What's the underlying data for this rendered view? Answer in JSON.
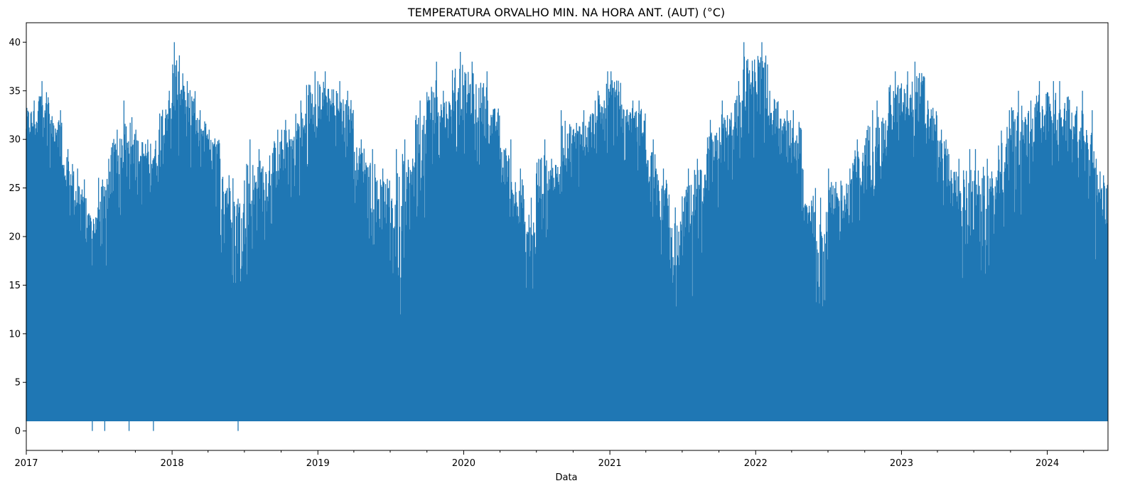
{
  "chart_data": {
    "type": "line",
    "title": "TEMPERATURA ORVALHO MIN. NA HORA ANT. (AUT) (°C)",
    "xlabel": "Data",
    "ylabel": "",
    "x_ticks": [
      "2017",
      "2018",
      "2019",
      "2020",
      "2021",
      "2022",
      "2023",
      "2024"
    ],
    "y_ticks": [
      "0",
      "5",
      "10",
      "15",
      "20",
      "25",
      "30",
      "35",
      "40"
    ],
    "xlim": [
      "2017-01-01",
      "2024-06-01"
    ],
    "ylim": [
      -2,
      42
    ],
    "grid": false,
    "legend": "none",
    "color": "#1f77b4",
    "series": [
      {
        "x": [
          "2017-01",
          "2017-02",
          "2017-03",
          "2017-04",
          "2017-05",
          "2017-06",
          "2017-07",
          "2017-08",
          "2017-09",
          "2017-10",
          "2017-11",
          "2017-12",
          "2018-01",
          "2018-02",
          "2018-03",
          "2018-04",
          "2018-05",
          "2018-06",
          "2018-07",
          "2018-08",
          "2018-09",
          "2018-10",
          "2018-11",
          "2018-12",
          "2019-01",
          "2019-02",
          "2019-03",
          "2019-04",
          "2019-05",
          "2019-06",
          "2019-07",
          "2019-08",
          "2019-09",
          "2019-10",
          "2019-11",
          "2019-12",
          "2020-01",
          "2020-02",
          "2020-03",
          "2020-04",
          "2020-05",
          "2020-06",
          "2020-07",
          "2020-08",
          "2020-09",
          "2020-10",
          "2020-11",
          "2020-12",
          "2021-01",
          "2021-02",
          "2021-03",
          "2021-04",
          "2021-05",
          "2021-06",
          "2021-07",
          "2021-08",
          "2021-09",
          "2021-10",
          "2021-11",
          "2021-12",
          "2022-01",
          "2022-02",
          "2022-03",
          "2022-04",
          "2022-05",
          "2022-06",
          "2022-07",
          "2022-08",
          "2022-09",
          "2022-10",
          "2022-11",
          "2022-12",
          "2023-01",
          "2023-02",
          "2023-03",
          "2023-04",
          "2023-05",
          "2023-06",
          "2023-07",
          "2023-08",
          "2023-09",
          "2023-10",
          "2023-11",
          "2023-12",
          "2024-01",
          "2024-02",
          "2024-03",
          "2024-04",
          "2024-05"
        ],
        "max": [
          34,
          36,
          33,
          29,
          27,
          23,
          28,
          31,
          34,
          31,
          31,
          35,
          40,
          36,
          33,
          31,
          28,
          26,
          30,
          29,
          31,
          32,
          34,
          37,
          37,
          36,
          35,
          30,
          29,
          27,
          29,
          30,
          34,
          38,
          35,
          39,
          38,
          37,
          34,
          30,
          27,
          24,
          30,
          28,
          33,
          33,
          34,
          37,
          37,
          34,
          34,
          30,
          27,
          23,
          27,
          28,
          32,
          34,
          36,
          40,
          40,
          35,
          33,
          33,
          25,
          24,
          27,
          27,
          30,
          33,
          34,
          37,
          37,
          38,
          34,
          31,
          28,
          29,
          29,
          28,
          33,
          35,
          34,
          36,
          36,
          36,
          35,
          33,
          28
        ],
        "low": [
          29,
          31,
          29,
          24,
          21,
          19,
          20,
          25,
          27,
          25,
          25,
          30,
          31,
          30,
          28,
          26,
          20,
          17,
          17,
          22,
          24,
          26,
          27,
          30,
          31,
          31,
          30,
          25,
          22,
          20,
          13,
          20,
          24,
          28,
          30,
          31,
          31,
          30,
          29,
          25,
          21,
          15,
          20,
          24,
          26,
          27,
          28,
          30,
          31,
          30,
          29,
          25,
          20,
          15,
          16,
          21,
          24,
          26,
          27,
          31,
          32,
          30,
          28,
          25,
          20,
          15,
          18,
          21,
          23,
          24,
          26,
          29,
          31,
          31,
          29,
          25,
          22,
          16,
          17,
          20,
          23,
          25,
          27,
          29,
          29,
          29,
          28,
          25,
          20
        ],
        "base": 1
      }
    ],
    "dips_to_zero": [
      "2017-06",
      "2017-07",
      "2017-09",
      "2017-11",
      "2018-06"
    ]
  }
}
